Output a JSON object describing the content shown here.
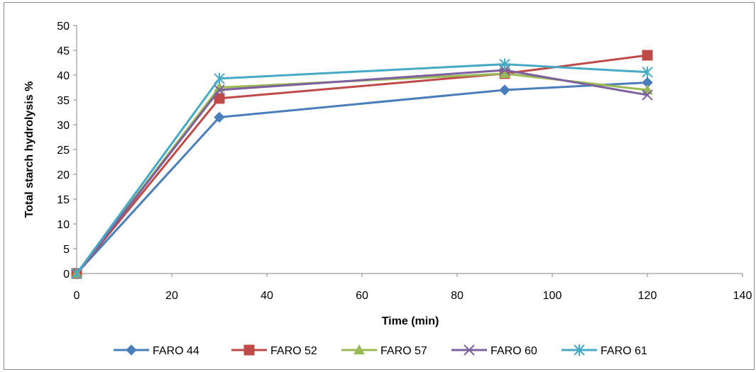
{
  "chart_data": {
    "type": "line",
    "title": "",
    "xlabel": "Time (min)",
    "ylabel": "Total starch hydrolysis %",
    "xlim": [
      0,
      140
    ],
    "ylim": [
      0,
      50
    ],
    "xticks": [
      0,
      20,
      40,
      60,
      80,
      100,
      120,
      140
    ],
    "yticks": [
      0,
      5,
      10,
      15,
      20,
      25,
      30,
      35,
      40,
      45,
      50
    ],
    "grid": false,
    "legend_position": "bottom",
    "series": [
      {
        "name": "FARO 44",
        "color": "#4A7EBB",
        "marker": "diamond",
        "x": [
          0,
          30,
          90,
          120
        ],
        "y": [
          0,
          31.5,
          37.0,
          38.5
        ]
      },
      {
        "name": "FARO 52",
        "color": "#BE4B48",
        "marker": "square",
        "x": [
          0,
          30,
          90,
          120
        ],
        "y": [
          0,
          35.3,
          40.3,
          44.0
        ]
      },
      {
        "name": "FARO 57",
        "color": "#98B954",
        "marker": "triangle",
        "x": [
          0,
          30,
          90,
          120
        ],
        "y": [
          0,
          37.5,
          40.3,
          37.0
        ]
      },
      {
        "name": "FARO 60",
        "color": "#7D60A0",
        "marker": "x",
        "x": [
          0,
          30,
          90,
          120
        ],
        "y": [
          0,
          37.0,
          41.0,
          36.0
        ]
      },
      {
        "name": "FARO 61",
        "color": "#46AAC5",
        "marker": "star",
        "x": [
          0,
          30,
          90,
          120
        ],
        "y": [
          0,
          39.3,
          42.2,
          40.6
        ]
      }
    ]
  }
}
